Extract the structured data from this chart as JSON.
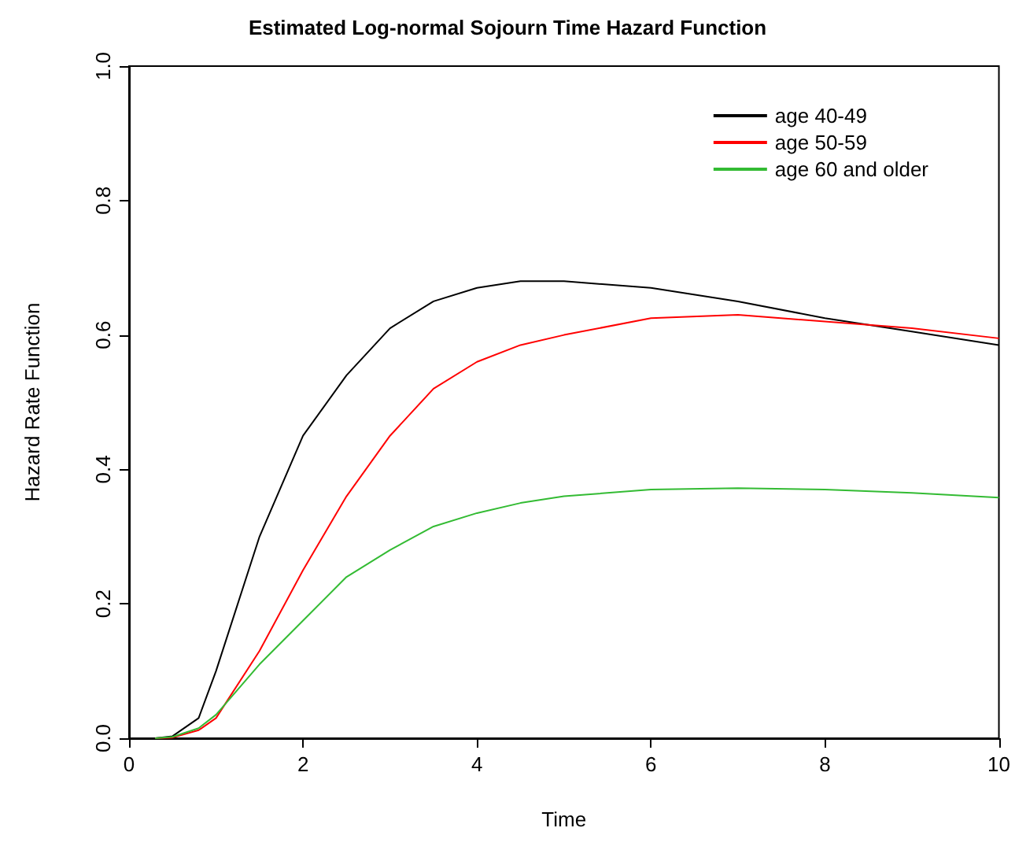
{
  "chart_data": {
    "type": "line",
    "title": "Estimated Log-normal Sojourn Time Hazard Function",
    "xlabel": "Time",
    "ylabel": "Hazard Rate Function",
    "xlim": [
      0,
      10
    ],
    "ylim": [
      0,
      1
    ],
    "xticks": [
      0,
      2,
      4,
      6,
      8,
      10
    ],
    "yticks": [
      {
        "value": 0,
        "label": "0.0"
      },
      0.2,
      0.4,
      0.6,
      0.8,
      {
        "value": 1,
        "label": "1.0"
      }
    ],
    "grid": false,
    "legend": "top right",
    "marker": "none",
    "line_style": "solid",
    "x": [
      0.3,
      0.5,
      0.8,
      1,
      1.5,
      2,
      2.5,
      3,
      3.5,
      4,
      4.5,
      5,
      6,
      7,
      8,
      9,
      10
    ],
    "series": [
      {
        "name": "age 40-49",
        "color": "#000000",
        "values": [
          0,
          0.003,
          0.03,
          0.1,
          0.3,
          0.45,
          0.54,
          0.61,
          0.65,
          0.67,
          0.68,
          0.68,
          0.67,
          0.65,
          0.625,
          0.605,
          0.585
        ]
      },
      {
        "name": "age 50-59",
        "color": "#ff0000",
        "values": [
          0,
          0.001,
          0.012,
          0.03,
          0.13,
          0.25,
          0.36,
          0.45,
          0.52,
          0.56,
          0.585,
          0.6,
          0.625,
          0.63,
          0.62,
          0.61,
          0.595
        ]
      },
      {
        "name": "age 60 and older",
        "color": "#33bb33",
        "values": [
          0,
          0.002,
          0.015,
          0.035,
          0.11,
          0.175,
          0.24,
          0.28,
          0.315,
          0.335,
          0.35,
          0.36,
          0.37,
          0.372,
          0.37,
          0.365,
          0.358
        ]
      }
    ]
  }
}
